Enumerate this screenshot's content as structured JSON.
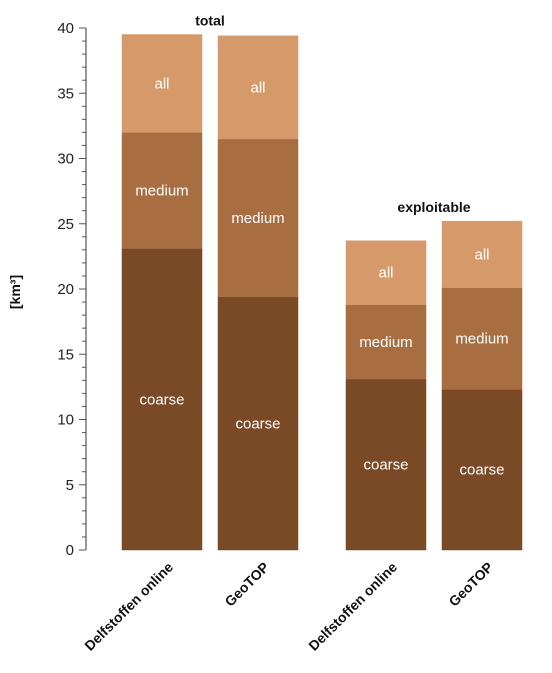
{
  "chart_data": {
    "type": "bar",
    "stacked": true,
    "ylabel": "[km³]",
    "ylim": [
      0,
      40
    ],
    "yticks": [
      0,
      5,
      10,
      15,
      20,
      25,
      30,
      35,
      40
    ],
    "grid": false,
    "groups": [
      {
        "title": "total",
        "categories": [
          "Delfstoffen online",
          "GeoTOP"
        ]
      },
      {
        "title": "exploitable",
        "categories": [
          "Delfstoffen online",
          "GeoTOP"
        ]
      }
    ],
    "series": [
      {
        "name": "coarse",
        "color": "#7a4a27",
        "values": [
          23.1,
          19.4,
          13.1,
          12.3
        ]
      },
      {
        "name": "medium",
        "color": "#a86e41",
        "values": [
          8.9,
          12.1,
          5.7,
          7.8
        ]
      },
      {
        "name": "all",
        "color": "#d6996a",
        "values": [
          7.5,
          7.9,
          4.9,
          5.1
        ]
      }
    ]
  }
}
